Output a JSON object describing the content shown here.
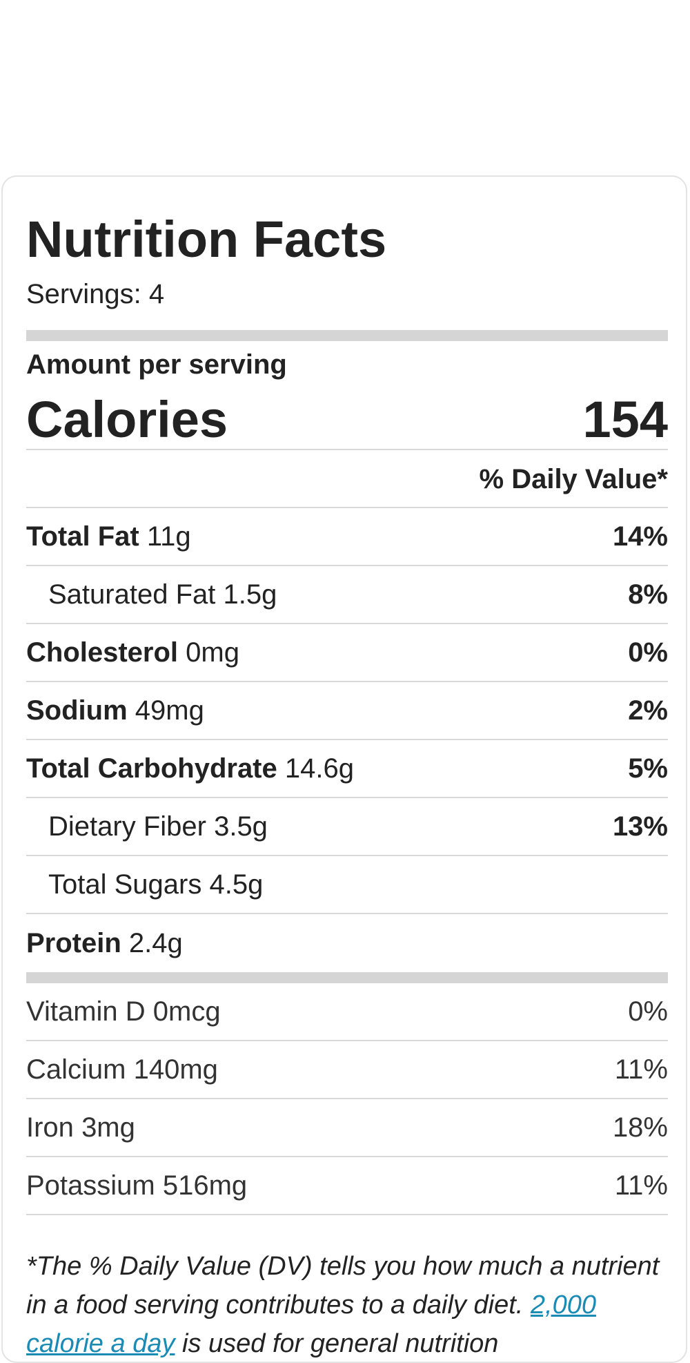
{
  "title": "Nutrition Facts",
  "servings": "Servings: 4",
  "amount_per_serving": "Amount per serving",
  "calories": {
    "label": "Calories",
    "value": "154"
  },
  "daily_value_header": "% Daily Value*",
  "nutrients": [
    {
      "name": "Total Fat",
      "amount": "11g",
      "pct": "14%"
    },
    {
      "name": "Saturated Fat",
      "amount": "1.5g",
      "pct": "8%"
    },
    {
      "name": "Cholesterol",
      "amount": "0mg",
      "pct": "0%"
    },
    {
      "name": "Sodium",
      "amount": "49mg",
      "pct": "2%"
    },
    {
      "name": "Total Carbohydrate",
      "amount": "14.6g",
      "pct": "5%"
    },
    {
      "name": "Dietary Fiber",
      "amount": "3.5g",
      "pct": "13%"
    },
    {
      "name": "Total Sugars",
      "amount": "4.5g",
      "pct": ""
    },
    {
      "name": "Protein",
      "amount": "2.4g",
      "pct": ""
    }
  ],
  "vitamins": [
    {
      "name": "Vitamin D",
      "amount": "0mcg",
      "pct": "0%"
    },
    {
      "name": "Calcium",
      "amount": "140mg",
      "pct": "11%"
    },
    {
      "name": "Iron",
      "amount": "3mg",
      "pct": "18%"
    },
    {
      "name": "Potassium",
      "amount": "516mg",
      "pct": "11%"
    }
  ],
  "footnote": {
    "text_before": "*The % Daily Value (DV) tells you how much a nutrient in a food serving contributes to a daily diet. ",
    "link": "2,000 calorie a day",
    "text_after": " is used for general nutrition"
  },
  "colors": {
    "link": "#1a8bb5",
    "bar": "#d5d5d5"
  }
}
